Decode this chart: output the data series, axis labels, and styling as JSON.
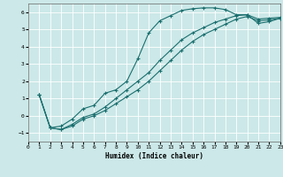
{
  "xlabel": "Humidex (Indice chaleur)",
  "ylabel": "",
  "xlim": [
    0,
    23
  ],
  "ylim": [
    -1.5,
    6.5
  ],
  "yticks": [
    -1,
    0,
    1,
    2,
    3,
    4,
    5,
    6
  ],
  "xticks": [
    0,
    1,
    2,
    3,
    4,
    5,
    6,
    7,
    8,
    9,
    10,
    11,
    12,
    13,
    14,
    15,
    16,
    17,
    18,
    19,
    20,
    21,
    22,
    23
  ],
  "bg_color": "#cce8e8",
  "grid_color": "#ffffff",
  "line_color": "#1a6e6e",
  "line1_x": [
    1,
    2,
    3,
    4,
    5,
    6,
    7,
    8,
    9,
    10,
    11,
    12,
    13,
    14,
    15,
    16,
    17,
    18,
    19,
    20,
    21,
    22,
    23
  ],
  "line1_y": [
    1.2,
    -0.7,
    -0.6,
    -0.2,
    0.4,
    0.6,
    1.3,
    1.5,
    2.0,
    3.3,
    4.8,
    5.5,
    5.8,
    6.1,
    6.2,
    6.25,
    6.25,
    6.15,
    5.85,
    5.85,
    5.35,
    5.45,
    5.65
  ],
  "line2_x": [
    1,
    2,
    3,
    4,
    5,
    6,
    7,
    8,
    9,
    10,
    11,
    12,
    13,
    14,
    15,
    16,
    17,
    18,
    19,
    20,
    21,
    22,
    23
  ],
  "line2_y": [
    1.2,
    -0.7,
    -0.8,
    -0.5,
    -0.1,
    0.1,
    0.5,
    1.0,
    1.5,
    2.0,
    2.5,
    3.2,
    3.8,
    4.4,
    4.8,
    5.1,
    5.4,
    5.6,
    5.8,
    5.85,
    5.6,
    5.65,
    5.7
  ],
  "line3_x": [
    1,
    2,
    3,
    4,
    5,
    6,
    7,
    8,
    9,
    10,
    11,
    12,
    13,
    14,
    15,
    16,
    17,
    18,
    19,
    20,
    21,
    22,
    23
  ],
  "line3_y": [
    1.2,
    -0.7,
    -0.8,
    -0.6,
    -0.2,
    0.0,
    0.3,
    0.7,
    1.1,
    1.5,
    2.0,
    2.6,
    3.2,
    3.8,
    4.3,
    4.7,
    5.0,
    5.3,
    5.6,
    5.75,
    5.5,
    5.55,
    5.65
  ]
}
